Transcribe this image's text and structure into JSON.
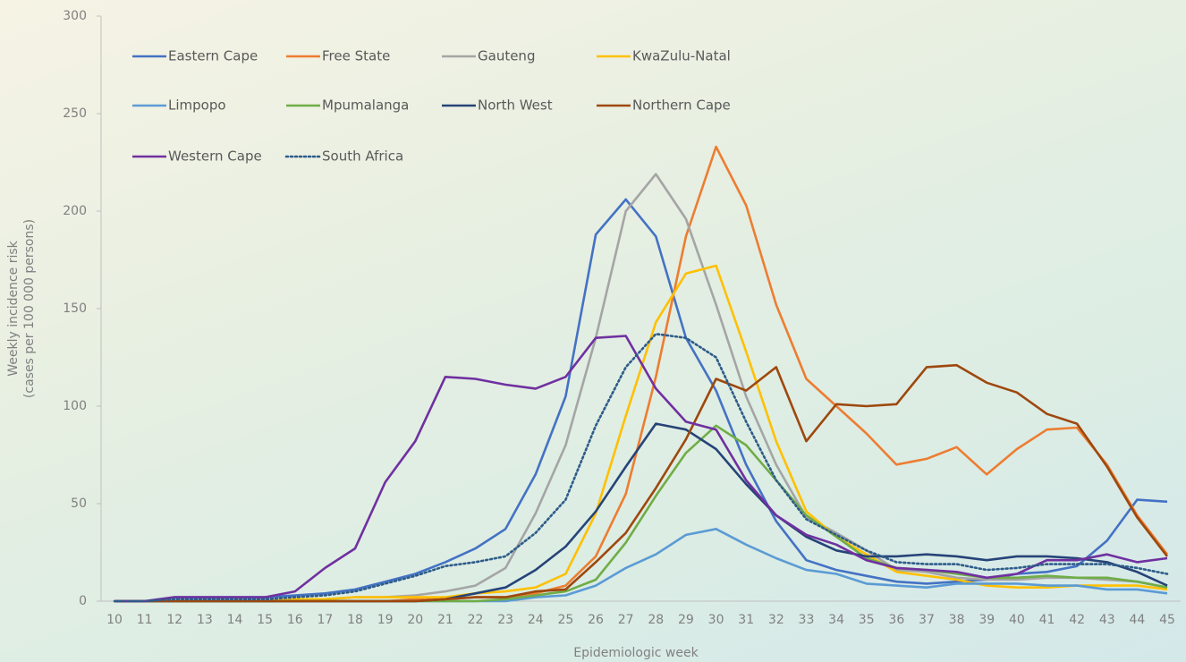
{
  "chart_data": {
    "type": "line",
    "x_label": "Epidemiologic week",
    "y_label": [
      "Weekly incidence risk",
      "(cases per 100 000 persons)"
    ],
    "x": [
      10,
      11,
      12,
      13,
      14,
      15,
      16,
      17,
      18,
      19,
      20,
      21,
      22,
      23,
      24,
      25,
      26,
      27,
      28,
      29,
      30,
      31,
      32,
      33,
      34,
      35,
      36,
      37,
      38,
      39,
      40,
      41,
      42,
      43,
      44,
      45
    ],
    "xlim": [
      10,
      45
    ],
    "ylim": [
      0,
      300
    ],
    "yticks": [
      0,
      50,
      100,
      150,
      200,
      250,
      300
    ],
    "legend": "top-left",
    "series": [
      {
        "name": "Eastern Cape",
        "color": "#4472c4",
        "values": [
          0,
          0,
          2,
          2,
          2,
          2,
          3,
          4,
          6,
          10,
          14,
          20,
          27,
          37,
          65,
          105,
          188,
          206,
          187,
          135,
          108,
          70,
          41,
          21,
          16,
          13,
          10,
          9,
          10,
          11,
          14,
          15,
          18,
          31,
          52,
          51
        ]
      },
      {
        "name": "Free State",
        "color": "#ed7d31",
        "values": [
          0,
          0,
          0,
          0,
          0,
          0,
          0,
          0,
          0,
          0,
          1,
          1,
          2,
          2,
          4,
          8,
          23,
          55,
          115,
          187,
          233,
          203,
          152,
          114,
          100,
          86,
          70,
          73,
          79,
          65,
          78,
          88,
          89,
          70,
          44,
          24
        ]
      },
      {
        "name": "Gauteng",
        "color": "#a5a5a5",
        "values": [
          0,
          0,
          0,
          0,
          0,
          0,
          1,
          1,
          2,
          2,
          3,
          5,
          8,
          17,
          45,
          80,
          135,
          200,
          219,
          196,
          152,
          105,
          70,
          43,
          35,
          26,
          16,
          15,
          12,
          11,
          11,
          12,
          12,
          11,
          10,
          7
        ]
      },
      {
        "name": "KwaZulu-Natal",
        "color": "#ffc000",
        "values": [
          0,
          0,
          0,
          0,
          0,
          0,
          1,
          1,
          2,
          2,
          2,
          2,
          4,
          5,
          7,
          14,
          45,
          95,
          143,
          168,
          172,
          128,
          82,
          46,
          33,
          24,
          15,
          13,
          11,
          8,
          7,
          7,
          8,
          8,
          8,
          6
        ]
      },
      {
        "name": "Limpopo",
        "color": "#5b9bd5",
        "values": [
          0,
          0,
          0,
          0,
          0,
          0,
          0,
          0,
          0,
          0,
          0,
          0,
          0,
          0,
          2,
          3,
          8,
          17,
          24,
          34,
          37,
          29,
          22,
          16,
          14,
          9,
          8,
          7,
          9,
          9,
          9,
          8,
          8,
          6,
          6,
          4
        ]
      },
      {
        "name": "Mpumalanga",
        "color": "#70ad47",
        "values": [
          0,
          0,
          0,
          0,
          0,
          0,
          0,
          0,
          0,
          0,
          0,
          0,
          0,
          1,
          3,
          5,
          11,
          30,
          54,
          76,
          90,
          80,
          62,
          44,
          33,
          22,
          17,
          16,
          14,
          12,
          12,
          13,
          12,
          12,
          10,
          7
        ]
      },
      {
        "name": "North West",
        "color": "#264478",
        "values": [
          0,
          0,
          0,
          0,
          0,
          0,
          0,
          0,
          0,
          0,
          0,
          1,
          4,
          7,
          16,
          28,
          46,
          69,
          91,
          88,
          78,
          60,
          44,
          33,
          26,
          23,
          23,
          24,
          23,
          21,
          23,
          23,
          22,
          20,
          15,
          8
        ]
      },
      {
        "name": "Northern Cape",
        "color": "#9e480e",
        "values": [
          0,
          0,
          0,
          0,
          0,
          0,
          0,
          0,
          0,
          0,
          0,
          1,
          2,
          2,
          5,
          6,
          20,
          35,
          58,
          83,
          114,
          108,
          120,
          82,
          101,
          100,
          101,
          120,
          121,
          112,
          107,
          96,
          91,
          69,
          43,
          23
        ]
      },
      {
        "name": "Western Cape",
        "color": "#7030a0",
        "values": [
          0,
          0,
          2,
          2,
          2,
          2,
          5,
          17,
          27,
          61,
          82,
          115,
          114,
          111,
          109,
          115,
          135,
          136,
          109,
          92,
          88,
          62,
          44,
          34,
          29,
          21,
          17,
          16,
          15,
          12,
          14,
          21,
          21,
          24,
          20,
          22
        ]
      },
      {
        "name": "South Africa",
        "color": "#2e5c8a",
        "dash": "dotted",
        "values": [
          0,
          0,
          1,
          1,
          1,
          1,
          2,
          3,
          5,
          9,
          13,
          18,
          20,
          23,
          35,
          52,
          90,
          120,
          137,
          135,
          125,
          92,
          62,
          42,
          34,
          26,
          20,
          19,
          19,
          16,
          17,
          19,
          19,
          19,
          17,
          14
        ]
      }
    ]
  }
}
